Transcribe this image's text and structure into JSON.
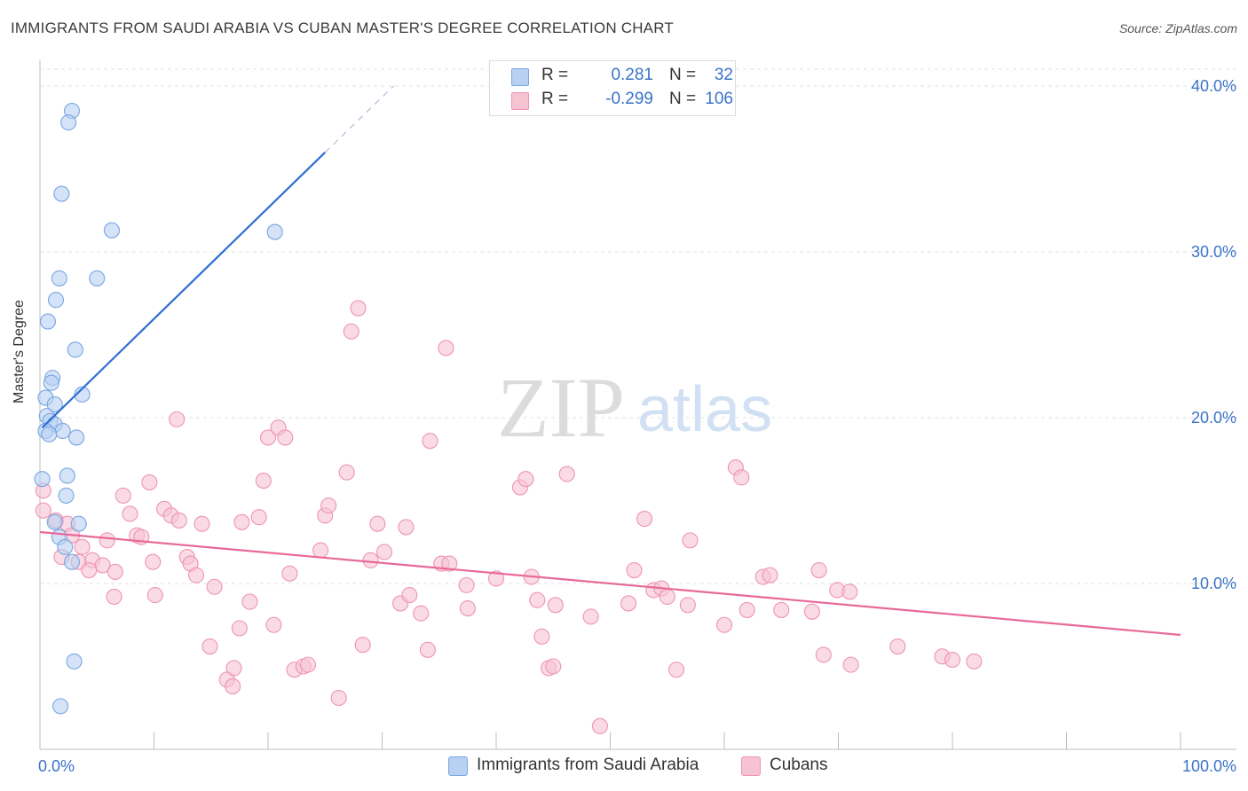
{
  "title": "IMMIGRANTS FROM SAUDI ARABIA VS CUBAN MASTER'S DEGREE CORRELATION CHART",
  "source": "Source: ZipAtlas.com",
  "watermark": {
    "zip": "ZIP",
    "atlas": "atlas"
  },
  "colors": {
    "blue_fill": "#b8d0f1",
    "blue_stroke": "#7aa6e2",
    "blue_line": "#2d6fd3",
    "pink_fill": "#f6c3d3",
    "pink_stroke": "#ee94b2",
    "pink_line": "#e8689a",
    "tick_label": "#3a73c9",
    "grid": "#e2e2e2"
  },
  "legend": {
    "rows": [
      {
        "r_label": "R =",
        "r_value": "0.281",
        "n_label": "N =",
        "n_value": "32"
      },
      {
        "r_label": "R =",
        "r_value": "-0.299",
        "n_label": "N =",
        "n_value": "106"
      }
    ]
  },
  "chart_data": {
    "type": "scatter",
    "title": "IMMIGRANTS FROM SAUDI ARABIA VS CUBAN MASTER'S DEGREE CORRELATION CHART",
    "xlabel": "",
    "ylabel": "Master's Degree",
    "xlim": [
      0,
      100
    ],
    "ylim": [
      0,
      40
    ],
    "x_tick_labels": [
      "0.0%",
      "100.0%"
    ],
    "y_ticks": [
      {
        "value": 10,
        "label": "10.0%"
      },
      {
        "value": 20,
        "label": "20.0%"
      },
      {
        "value": 30,
        "label": "30.0%"
      },
      {
        "value": 40,
        "label": "40.0%"
      }
    ],
    "series": [
      {
        "name": "Immigrants from Saudi Arabia",
        "R": 0.281,
        "N": 32,
        "trend": {
          "x0": 0.2,
          "y0": 19.4,
          "x1": 25.0,
          "y1": 36.0,
          "dash_x1": 31.0,
          "dash_y1": 40.0
        },
        "points": [
          [
            2.8,
            38.5
          ],
          [
            2.5,
            37.8
          ],
          [
            1.9,
            33.5
          ],
          [
            6.3,
            31.3
          ],
          [
            20.6,
            31.2
          ],
          [
            1.7,
            28.4
          ],
          [
            5.0,
            28.4
          ],
          [
            1.4,
            27.1
          ],
          [
            0.7,
            25.8
          ],
          [
            3.1,
            24.1
          ],
          [
            1.1,
            22.4
          ],
          [
            1.0,
            22.1
          ],
          [
            3.7,
            21.4
          ],
          [
            0.5,
            21.2
          ],
          [
            1.3,
            20.8
          ],
          [
            0.6,
            20.1
          ],
          [
            0.9,
            19.8
          ],
          [
            1.3,
            19.6
          ],
          [
            2.0,
            19.2
          ],
          [
            0.5,
            19.2
          ],
          [
            0.8,
            19.0
          ],
          [
            3.2,
            18.8
          ],
          [
            0.2,
            16.3
          ],
          [
            2.4,
            16.5
          ],
          [
            2.3,
            15.3
          ],
          [
            1.3,
            13.7
          ],
          [
            3.4,
            13.6
          ],
          [
            1.7,
            12.8
          ],
          [
            2.2,
            12.2
          ],
          [
            2.8,
            11.3
          ],
          [
            3.0,
            5.3
          ],
          [
            1.8,
            2.6
          ]
        ]
      },
      {
        "name": "Cubans",
        "R": -0.299,
        "N": 106,
        "trend": {
          "x0": 0.0,
          "y0": 13.1,
          "x1": 100.0,
          "y1": 6.9
        },
        "points": [
          [
            0.3,
            15.6
          ],
          [
            0.3,
            14.4
          ],
          [
            1.4,
            13.8
          ],
          [
            2.4,
            13.6
          ],
          [
            2.8,
            12.9
          ],
          [
            3.7,
            12.2
          ],
          [
            1.9,
            11.6
          ],
          [
            3.4,
            11.3
          ],
          [
            4.6,
            11.4
          ],
          [
            5.5,
            11.1
          ],
          [
            4.3,
            10.8
          ],
          [
            6.6,
            10.7
          ],
          [
            5.9,
            12.6
          ],
          [
            7.3,
            15.3
          ],
          [
            7.9,
            14.2
          ],
          [
            8.5,
            12.9
          ],
          [
            8.9,
            12.8
          ],
          [
            9.6,
            16.1
          ],
          [
            9.9,
            11.3
          ],
          [
            10.1,
            9.3
          ],
          [
            6.5,
            9.2
          ],
          [
            10.9,
            14.5
          ],
          [
            11.5,
            14.1
          ],
          [
            12.2,
            13.8
          ],
          [
            12.9,
            11.6
          ],
          [
            13.2,
            11.2
          ],
          [
            13.7,
            10.5
          ],
          [
            14.2,
            13.6
          ],
          [
            15.3,
            9.8
          ],
          [
            12.0,
            19.9
          ],
          [
            14.9,
            6.2
          ],
          [
            16.4,
            4.2
          ],
          [
            16.9,
            3.8
          ],
          [
            17.0,
            4.9
          ],
          [
            17.5,
            7.3
          ],
          [
            17.7,
            13.7
          ],
          [
            18.4,
            8.9
          ],
          [
            19.2,
            14.0
          ],
          [
            19.6,
            16.2
          ],
          [
            20.0,
            18.8
          ],
          [
            20.5,
            7.5
          ],
          [
            20.9,
            19.4
          ],
          [
            21.5,
            18.8
          ],
          [
            21.9,
            10.6
          ],
          [
            22.3,
            4.8
          ],
          [
            23.1,
            5.0
          ],
          [
            23.5,
            5.1
          ],
          [
            24.6,
            12.0
          ],
          [
            25.0,
            14.1
          ],
          [
            25.3,
            14.7
          ],
          [
            26.2,
            3.1
          ],
          [
            26.9,
            16.7
          ],
          [
            27.3,
            25.2
          ],
          [
            27.9,
            26.6
          ],
          [
            28.3,
            6.3
          ],
          [
            29.0,
            11.4
          ],
          [
            29.6,
            13.6
          ],
          [
            30.2,
            11.9
          ],
          [
            31.6,
            8.8
          ],
          [
            32.1,
            13.4
          ],
          [
            32.4,
            9.3
          ],
          [
            33.4,
            8.2
          ],
          [
            34.0,
            6.0
          ],
          [
            34.2,
            18.6
          ],
          [
            35.2,
            11.2
          ],
          [
            35.9,
            11.2
          ],
          [
            35.6,
            24.2
          ],
          [
            37.4,
            9.9
          ],
          [
            37.5,
            8.5
          ],
          [
            40.0,
            10.3
          ],
          [
            42.1,
            15.8
          ],
          [
            42.6,
            16.3
          ],
          [
            43.1,
            10.4
          ],
          [
            43.6,
            9.0
          ],
          [
            44.0,
            6.8
          ],
          [
            44.6,
            4.9
          ],
          [
            45.0,
            5.0
          ],
          [
            45.2,
            8.7
          ],
          [
            46.2,
            16.6
          ],
          [
            48.3,
            8.0
          ],
          [
            49.1,
            1.4
          ],
          [
            51.6,
            8.8
          ],
          [
            52.1,
            10.8
          ],
          [
            53.0,
            13.9
          ],
          [
            53.8,
            9.6
          ],
          [
            54.5,
            9.7
          ],
          [
            55.0,
            9.2
          ],
          [
            55.8,
            4.8
          ],
          [
            56.8,
            8.7
          ],
          [
            57.0,
            12.6
          ],
          [
            60.0,
            7.5
          ],
          [
            61.0,
            17.0
          ],
          [
            61.5,
            16.4
          ],
          [
            62.0,
            8.4
          ],
          [
            63.4,
            10.4
          ],
          [
            64.0,
            10.5
          ],
          [
            65.0,
            8.4
          ],
          [
            67.7,
            8.3
          ],
          [
            68.3,
            10.8
          ],
          [
            68.7,
            5.7
          ],
          [
            69.9,
            9.6
          ],
          [
            71.0,
            9.5
          ],
          [
            71.1,
            5.1
          ],
          [
            75.2,
            6.2
          ],
          [
            79.1,
            5.6
          ],
          [
            80.0,
            5.4
          ],
          [
            81.9,
            5.3
          ]
        ]
      }
    ]
  }
}
